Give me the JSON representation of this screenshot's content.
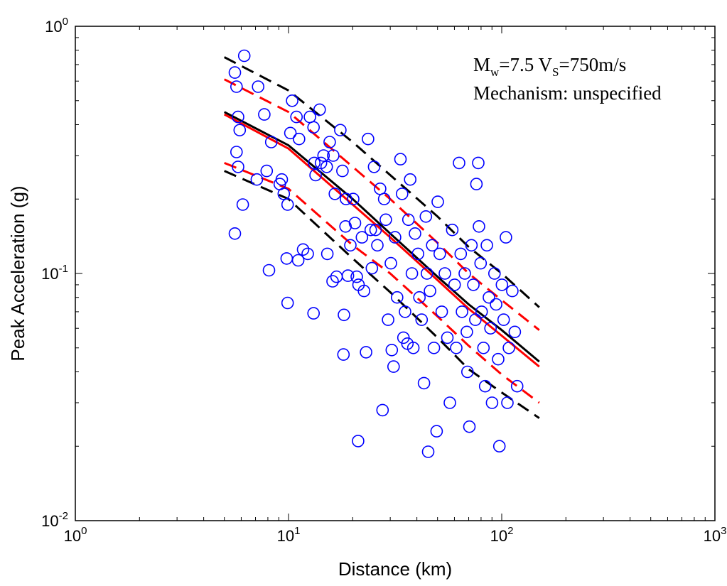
{
  "chart_data": {
    "type": "scatter",
    "x_scale": "log",
    "y_scale": "log",
    "xlabel": "Distance (km)",
    "ylabel": "Peak Acceleration (g)",
    "xlim": [
      1,
      1000
    ],
    "ylim": [
      0.01,
      1
    ],
    "x_ticks": [
      {
        "base": "10",
        "exp": "0"
      },
      {
        "base": "10",
        "exp": "1"
      },
      {
        "base": "10",
        "exp": "2"
      },
      {
        "base": "10",
        "exp": "3"
      }
    ],
    "y_ticks": [
      {
        "base": "10",
        "exp": "-2"
      },
      {
        "base": "10",
        "exp": "-1"
      },
      {
        "base": "10",
        "exp": "0"
      }
    ],
    "grid": false,
    "annotation": {
      "line1": {
        "m": "M",
        "m_sub": "w",
        "m_val": "=7.5 ",
        "v": "V",
        "v_sub": "S",
        "v_val": "=750m/s"
      },
      "line2": "Mechanism: unspecified"
    },
    "colors": {
      "points": "#0000ff",
      "median_black": "#000000",
      "median_red": "#ff0000",
      "bounds_black": "#000000",
      "bounds_red": "#ff0000"
    },
    "series": [
      {
        "kind": "curve",
        "style": "solid",
        "color": "#000000",
        "x": [
          5,
          10,
          20,
          30,
          50,
          70,
          100,
          150
        ],
        "y": [
          0.45,
          0.33,
          0.2,
          0.145,
          0.097,
          0.075,
          0.059,
          0.044
        ]
      },
      {
        "kind": "curve",
        "style": "solid",
        "color": "#ff0000",
        "x": [
          5,
          10,
          20,
          30,
          50,
          70,
          100,
          150
        ],
        "y": [
          0.44,
          0.32,
          0.19,
          0.14,
          0.094,
          0.072,
          0.056,
          0.042
        ]
      },
      {
        "kind": "curve",
        "style": "dashed",
        "color": "#000000",
        "x": [
          5,
          10,
          20,
          30,
          50,
          70,
          100,
          150
        ],
        "y": [
          0.75,
          0.55,
          0.34,
          0.25,
          0.17,
          0.128,
          0.1,
          0.073
        ]
      },
      {
        "kind": "curve",
        "style": "dashed",
        "color": "#ff0000",
        "x": [
          5,
          10,
          20,
          30,
          50,
          70,
          100,
          150
        ],
        "y": [
          0.61,
          0.45,
          0.27,
          0.2,
          0.133,
          0.1,
          0.078,
          0.059
        ]
      },
      {
        "kind": "curve",
        "style": "dashed",
        "color": "#ff0000",
        "x": [
          5,
          10,
          20,
          30,
          50,
          70,
          100,
          150
        ],
        "y": [
          0.28,
          0.22,
          0.13,
          0.1,
          0.067,
          0.051,
          0.039,
          0.03
        ]
      },
      {
        "kind": "curve",
        "style": "dashed",
        "color": "#000000",
        "x": [
          5,
          10,
          20,
          30,
          50,
          70,
          100,
          150
        ],
        "y": [
          0.26,
          0.2,
          0.115,
          0.084,
          0.055,
          0.041,
          0.033,
          0.026
        ]
      },
      {
        "kind": "points",
        "marker": "circle",
        "color": "#0000ff",
        "points": [
          [
            5.6,
            0.65
          ],
          [
            6.2,
            0.76
          ],
          [
            5.7,
            0.57
          ],
          [
            5.8,
            0.43
          ],
          [
            5.9,
            0.38
          ],
          [
            5.7,
            0.31
          ],
          [
            5.8,
            0.27
          ],
          [
            6.1,
            0.19
          ],
          [
            5.6,
            0.145
          ],
          [
            7.2,
            0.57
          ],
          [
            7.7,
            0.44
          ],
          [
            8.3,
            0.34
          ],
          [
            7.1,
            0.24
          ],
          [
            7.9,
            0.26
          ],
          [
            8.1,
            0.103
          ],
          [
            9.1,
            0.23
          ],
          [
            9.3,
            0.24
          ],
          [
            9.5,
            0.21
          ],
          [
            9.8,
            0.115
          ],
          [
            9.9,
            0.076
          ],
          [
            9.9,
            0.19
          ],
          [
            10.2,
            0.37
          ],
          [
            10.4,
            0.5
          ],
          [
            10.9,
            0.43
          ],
          [
            11.2,
            0.35
          ],
          [
            11.1,
            0.113
          ],
          [
            11.7,
            0.125
          ],
          [
            12.3,
            0.12
          ],
          [
            12.6,
            0.43
          ],
          [
            13.1,
            0.39
          ],
          [
            13.2,
            0.28
          ],
          [
            13.4,
            0.25
          ],
          [
            13.1,
            0.069
          ],
          [
            14.0,
            0.46
          ],
          [
            14.2,
            0.28
          ],
          [
            14.6,
            0.3
          ],
          [
            15.1,
            0.27
          ],
          [
            15.2,
            0.12
          ],
          [
            15.6,
            0.34
          ],
          [
            16.2,
            0.3
          ],
          [
            16.5,
            0.21
          ],
          [
            16.1,
            0.093
          ],
          [
            16.8,
            0.097
          ],
          [
            17.5,
            0.38
          ],
          [
            17.9,
            0.26
          ],
          [
            18.1,
            0.047
          ],
          [
            18.2,
            0.068
          ],
          [
            18.6,
            0.2
          ],
          [
            18.5,
            0.155
          ],
          [
            19.0,
            0.098
          ],
          [
            19.5,
            0.13
          ],
          [
            20.1,
            0.2
          ],
          [
            20.5,
            0.16
          ],
          [
            20.9,
            0.097
          ],
          [
            21.3,
            0.09
          ],
          [
            21.2,
            0.021
          ],
          [
            22.1,
            0.14
          ],
          [
            22.6,
            0.085
          ],
          [
            23.1,
            0.048
          ],
          [
            23.6,
            0.35
          ],
          [
            24.3,
            0.15
          ],
          [
            24.6,
            0.105
          ],
          [
            25.2,
            0.27
          ],
          [
            25.6,
            0.15
          ],
          [
            26.1,
            0.13
          ],
          [
            26.9,
            0.22
          ],
          [
            27.6,
            0.028
          ],
          [
            28.1,
            0.2
          ],
          [
            28.6,
            0.165
          ],
          [
            29.3,
            0.065
          ],
          [
            30.2,
            0.11
          ],
          [
            30.5,
            0.049
          ],
          [
            31.1,
            0.042
          ],
          [
            31.6,
            0.14
          ],
          [
            32.3,
            0.08
          ],
          [
            33.5,
            0.29
          ],
          [
            34.1,
            0.21
          ],
          [
            34.6,
            0.055
          ],
          [
            35.2,
            0.07
          ],
          [
            36.1,
            0.052
          ],
          [
            36.5,
            0.165
          ],
          [
            37.2,
            0.24
          ],
          [
            37.9,
            0.1
          ],
          [
            38.5,
            0.05
          ],
          [
            39.2,
            0.145
          ],
          [
            40.5,
            0.12
          ],
          [
            41.1,
            0.08
          ],
          [
            42.1,
            0.065
          ],
          [
            43.2,
            0.036
          ],
          [
            44.1,
            0.17
          ],
          [
            44.6,
            0.1
          ],
          [
            45.2,
            0.019
          ],
          [
            46.1,
            0.085
          ],
          [
            47.2,
            0.13
          ],
          [
            48.1,
            0.05
          ],
          [
            49.5,
            0.023
          ],
          [
            50.1,
            0.195
          ],
          [
            51.2,
            0.12
          ],
          [
            52.3,
            0.07
          ],
          [
            54.1,
            0.1
          ],
          [
            55.6,
            0.055
          ],
          [
            57.1,
            0.03
          ],
          [
            58.6,
            0.15
          ],
          [
            60.1,
            0.09
          ],
          [
            61.2,
            0.05
          ],
          [
            63.1,
            0.28
          ],
          [
            64.2,
            0.12
          ],
          [
            65.1,
            0.07
          ],
          [
            67.1,
            0.1
          ],
          [
            68.6,
            0.058
          ],
          [
            69.1,
            0.04
          ],
          [
            70.5,
            0.024
          ],
          [
            72.1,
            0.13
          ],
          [
            73.6,
            0.09
          ],
          [
            75.2,
            0.065
          ],
          [
            76.1,
            0.23
          ],
          [
            77.6,
            0.28
          ],
          [
            78.2,
            0.155
          ],
          [
            79.6,
            0.11
          ],
          [
            80.5,
            0.07
          ],
          [
            82.1,
            0.05
          ],
          [
            83.6,
            0.035
          ],
          [
            85.2,
            0.13
          ],
          [
            87.1,
            0.08
          ],
          [
            88.6,
            0.06
          ],
          [
            90.1,
            0.03
          ],
          [
            92.5,
            0.1
          ],
          [
            94.1,
            0.075
          ],
          [
            96.2,
            0.045
          ],
          [
            97.5,
            0.02
          ],
          [
            100.2,
            0.09
          ],
          [
            102.1,
            0.065
          ],
          [
            104.6,
            0.14
          ],
          [
            106.3,
            0.03
          ],
          [
            108.1,
            0.05
          ],
          [
            112.1,
            0.085
          ],
          [
            115.2,
            0.058
          ],
          [
            118.1,
            0.035
          ]
        ]
      }
    ]
  }
}
